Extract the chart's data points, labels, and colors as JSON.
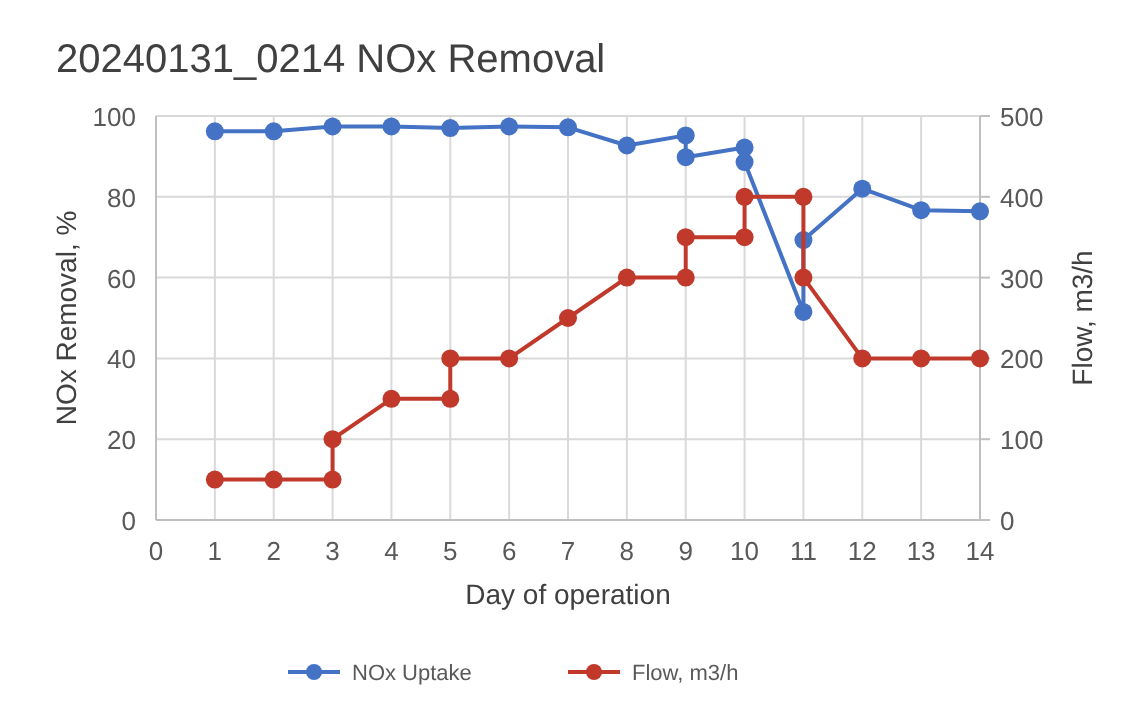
{
  "chart_data": {
    "type": "line",
    "title": "20240131_0214 NOx Removal",
    "xlabel": "Day of operation",
    "ylabel": "NOx Removal, %",
    "y2label": "Flow, m3/h",
    "xlim": [
      0,
      14
    ],
    "xticks": [
      0,
      1,
      2,
      3,
      4,
      5,
      6,
      7,
      8,
      9,
      10,
      11,
      12,
      13,
      14
    ],
    "ylim": [
      0,
      100
    ],
    "yticks": [
      0,
      20,
      40,
      60,
      80,
      100
    ],
    "y2lim": [
      0,
      500
    ],
    "y2ticks": [
      0,
      100,
      200,
      300,
      400,
      500
    ],
    "grid": true,
    "legend": "bottom",
    "marker": "circle",
    "line_style": "solid",
    "series": [
      {
        "name": "NOx Uptake",
        "color": "#4472c4",
        "x": [
          1,
          2,
          3,
          4,
          5,
          6,
          7,
          8,
          9,
          9,
          10,
          10,
          11,
          11,
          12,
          13,
          14
        ],
        "values": [
          96.2,
          96.2,
          97.4,
          97.4,
          97,
          97.4,
          97.2,
          92.7,
          95.2,
          89.8,
          92.2,
          88.6,
          51.5,
          69.3,
          82,
          76.7,
          76.4
        ]
      },
      {
        "name": "Flow, m3/h",
        "color": "#c0392b",
        "axis": "y2",
        "x": [
          1,
          2,
          3,
          3,
          4,
          5,
          5,
          6,
          7,
          8,
          9,
          9,
          10,
          10,
          11,
          11,
          12,
          13,
          14
        ],
        "values": [
          50,
          50,
          50,
          100,
          150,
          150,
          200,
          200,
          250,
          300,
          300,
          350,
          350,
          400,
          400,
          300,
          200,
          200,
          200
        ]
      }
    ]
  }
}
